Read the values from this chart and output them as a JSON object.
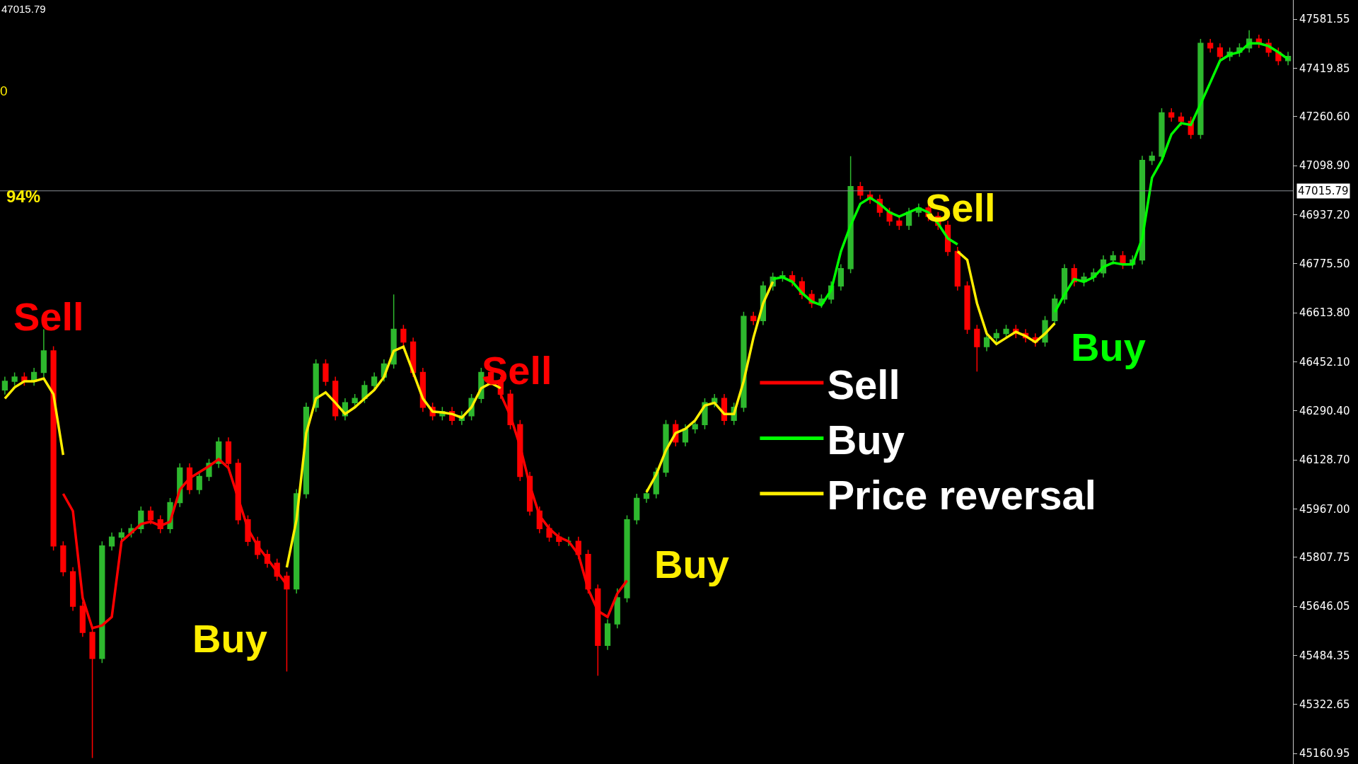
{
  "chart_data": {
    "type": "candlestick",
    "categories": [
      null,
      null,
      null,
      null,
      null,
      null,
      null,
      null,
      null,
      null,
      null,
      null,
      null,
      null,
      null,
      null,
      null,
      null,
      null,
      null,
      null,
      null,
      null,
      null,
      null,
      null,
      null,
      null,
      null,
      null,
      null,
      null,
      null,
      null,
      null,
      null,
      null,
      null,
      null,
      null,
      null,
      null,
      null,
      null,
      null,
      null,
      null,
      null,
      null,
      null,
      null,
      null,
      null,
      null,
      null,
      null,
      null,
      null,
      null,
      null,
      null,
      null,
      null,
      null,
      null,
      null,
      null,
      null,
      null,
      null,
      null,
      null,
      null,
      null,
      null,
      null,
      null,
      null,
      null,
      null,
      null,
      null,
      null,
      null,
      null,
      null,
      null,
      null,
      null,
      null,
      null,
      null,
      null,
      null,
      null,
      null,
      null,
      null,
      null,
      null,
      null,
      null,
      null,
      null,
      null,
      null,
      null,
      null,
      null,
      null,
      null,
      null,
      null,
      null,
      null,
      null,
      null,
      null,
      null,
      null,
      null,
      null,
      null,
      null,
      null,
      null,
      null,
      null,
      null,
      null,
      null,
      null,
      null
    ],
    "ohlc": [
      [
        46359,
        46403,
        46344,
        46388
      ],
      [
        46388,
        46417,
        46373,
        46402
      ],
      [
        46402,
        46417,
        46373,
        46388
      ],
      [
        46388,
        46432,
        46373,
        46417
      ],
      [
        46417,
        46559,
        46402,
        46488
      ],
      [
        46488,
        46503,
        45830,
        45845
      ],
      [
        45845,
        45860,
        45745,
        45760
      ],
      [
        45760,
        45775,
        45631,
        45646
      ],
      [
        45646,
        45661,
        45545,
        45560
      ],
      [
        45560,
        45575,
        45146,
        45474
      ],
      [
        45474,
        45860,
        45459,
        45845
      ],
      [
        45845,
        45889,
        45830,
        45874
      ],
      [
        45874,
        45903,
        45859,
        45888
      ],
      [
        45888,
        45917,
        45873,
        45902
      ],
      [
        45902,
        45975,
        45887,
        45960
      ],
      [
        45960,
        45975,
        45916,
        45931
      ],
      [
        45931,
        45946,
        45887,
        45902
      ],
      [
        45902,
        46003,
        45887,
        45988
      ],
      [
        45988,
        46117,
        45973,
        46102
      ],
      [
        46102,
        46117,
        46016,
        46031
      ],
      [
        46031,
        46089,
        46016,
        46074
      ],
      [
        46074,
        46132,
        46059,
        46117
      ],
      [
        46117,
        46203,
        46102,
        46188
      ],
      [
        46188,
        46203,
        46102,
        46117
      ],
      [
        46117,
        46132,
        45916,
        45931
      ],
      [
        45931,
        45946,
        45845,
        45860
      ],
      [
        45860,
        45875,
        45802,
        45817
      ],
      [
        45817,
        45832,
        45773,
        45788
      ],
      [
        45788,
        45803,
        45730,
        45745
      ],
      [
        45745,
        45760,
        45431,
        45703
      ],
      [
        45703,
        46032,
        45688,
        46017
      ],
      [
        46017,
        46317,
        46002,
        46302
      ],
      [
        46302,
        46460,
        46287,
        46445
      ],
      [
        46445,
        46460,
        46373,
        46388
      ],
      [
        46388,
        46403,
        46259,
        46274
      ],
      [
        46274,
        46332,
        46259,
        46317
      ],
      [
        46317,
        46346,
        46302,
        46331
      ],
      [
        46331,
        46389,
        46316,
        46374
      ],
      [
        46374,
        46417,
        46359,
        46402
      ],
      [
        46402,
        46460,
        46387,
        46445
      ],
      [
        46445,
        46674,
        46430,
        46559
      ],
      [
        46559,
        46574,
        46502,
        46517
      ],
      [
        46517,
        46532,
        46402,
        46417
      ],
      [
        46417,
        46432,
        46287,
        46302
      ],
      [
        46302,
        46317,
        46259,
        46274
      ],
      [
        46274,
        46303,
        46259,
        46288
      ],
      [
        46288,
        46303,
        46244,
        46259
      ],
      [
        46259,
        46289,
        46244,
        46274
      ],
      [
        46274,
        46346,
        46259,
        46331
      ],
      [
        46331,
        46432,
        46316,
        46417
      ],
      [
        46417,
        46432,
        46373,
        46388
      ],
      [
        46388,
        46403,
        46330,
        46345
      ],
      [
        46345,
        46360,
        46230,
        46245
      ],
      [
        46245,
        46260,
        46059,
        46074
      ],
      [
        46074,
        46089,
        45945,
        45960
      ],
      [
        45960,
        45975,
        45887,
        45902
      ],
      [
        45902,
        45917,
        45859,
        45874
      ],
      [
        45874,
        45889,
        45845,
        45860
      ],
      [
        45860,
        45875,
        45845,
        45860
      ],
      [
        45860,
        45875,
        45802,
        45817
      ],
      [
        45817,
        45832,
        45688,
        45703
      ],
      [
        45703,
        45718,
        45417,
        45517
      ],
      [
        45517,
        45603,
        45502,
        45588
      ],
      [
        45588,
        45705,
        45573,
        45674
      ],
      [
        45674,
        45946,
        45659,
        45931
      ],
      [
        45931,
        46017,
        45916,
        46002
      ],
      [
        46002,
        46032,
        45987,
        46017
      ],
      [
        46017,
        46103,
        46002,
        46088
      ],
      [
        46088,
        46260,
        46073,
        46245
      ],
      [
        46245,
        46260,
        46173,
        46188
      ],
      [
        46188,
        46246,
        46173,
        46231
      ],
      [
        46231,
        46260,
        46216,
        46245
      ],
      [
        46245,
        46332,
        46230,
        46317
      ],
      [
        46317,
        46346,
        46302,
        46331
      ],
      [
        46331,
        46346,
        46244,
        46259
      ],
      [
        46259,
        46317,
        46244,
        46302
      ],
      [
        46302,
        46617,
        46287,
        46602
      ],
      [
        46602,
        46617,
        46573,
        46588
      ],
      [
        46588,
        46717,
        46573,
        46702
      ],
      [
        46702,
        46746,
        46687,
        46731
      ],
      [
        46731,
        46751,
        46716,
        46736
      ],
      [
        46736,
        46751,
        46701,
        46716
      ],
      [
        46716,
        46731,
        46659,
        46674
      ],
      [
        46674,
        46689,
        46630,
        46645
      ],
      [
        46645,
        46674,
        46630,
        46659
      ],
      [
        46659,
        46717,
        46644,
        46702
      ],
      [
        46702,
        46774,
        46687,
        46759
      ],
      [
        46759,
        47130,
        46744,
        47030
      ],
      [
        47030,
        47045,
        46987,
        47002
      ],
      [
        47002,
        47017,
        46973,
        46988
      ],
      [
        46988,
        47003,
        46930,
        46945
      ],
      [
        46945,
        46960,
        46901,
        46916
      ],
      [
        46916,
        46931,
        46887,
        46902
      ],
      [
        46902,
        46960,
        46887,
        46945
      ],
      [
        46945,
        46974,
        46930,
        46959
      ],
      [
        46959,
        46974,
        46916,
        46931
      ],
      [
        46931,
        46946,
        46887,
        46902
      ],
      [
        46902,
        46917,
        46801,
        46816
      ],
      [
        46816,
        46831,
        46687,
        46702
      ],
      [
        46702,
        46717,
        46544,
        46559
      ],
      [
        46559,
        46574,
        46420,
        46502
      ],
      [
        46502,
        46546,
        46487,
        46531
      ],
      [
        46531,
        46560,
        46516,
        46545
      ],
      [
        46545,
        46574,
        46530,
        46559
      ],
      [
        46559,
        46574,
        46530,
        46545
      ],
      [
        46545,
        46560,
        46516,
        46531
      ],
      [
        46531,
        46546,
        46502,
        46517
      ],
      [
        46517,
        46603,
        46502,
        46588
      ],
      [
        46588,
        46674,
        46573,
        46659
      ],
      [
        46659,
        46774,
        46644,
        46759
      ],
      [
        46759,
        46774,
        46701,
        46716
      ],
      [
        46716,
        46746,
        46701,
        46731
      ],
      [
        46731,
        46760,
        46716,
        46745
      ],
      [
        46745,
        46803,
        46730,
        46788
      ],
      [
        46788,
        46817,
        46773,
        46802
      ],
      [
        46802,
        46817,
        46758,
        46773
      ],
      [
        46773,
        46803,
        46758,
        46788
      ],
      [
        46788,
        47131,
        46773,
        47116
      ],
      [
        47116,
        47145,
        47101,
        47130
      ],
      [
        47130,
        47288,
        47115,
        47273
      ],
      [
        47273,
        47288,
        47244,
        47259
      ],
      [
        47259,
        47274,
        47230,
        47245
      ],
      [
        47245,
        47260,
        47187,
        47202
      ],
      [
        47202,
        47517,
        47187,
        47502
      ],
      [
        47502,
        47517,
        47472,
        47487
      ],
      [
        47487,
        47502,
        47444,
        47459
      ],
      [
        47459,
        47488,
        47444,
        47473
      ],
      [
        47473,
        47502,
        47458,
        47487
      ],
      [
        47487,
        47545,
        47472,
        47516
      ],
      [
        47516,
        47531,
        47487,
        47502
      ],
      [
        47502,
        47517,
        47458,
        47473
      ],
      [
        47473,
        47488,
        47430,
        47445
      ],
      [
        47445,
        47474,
        47430,
        47459
      ]
    ],
    "colors": [
      "#2eb82e",
      "#2eb82e",
      "#ff0000",
      "#2eb82e",
      "#2eb82e",
      "#ff0000",
      "#ff0000",
      "#ff0000",
      "#ff0000",
      "#ff0000",
      "#2eb82e",
      "#2eb82e",
      "#2eb82e",
      "#2eb82e",
      "#2eb82e",
      "#ff0000",
      "#ff0000",
      "#2eb82e",
      "#2eb82e",
      "#ff0000",
      "#2eb82e",
      "#2eb82e",
      "#2eb82e",
      "#ff0000",
      "#ff0000",
      "#ff0000",
      "#ff0000",
      "#ff0000",
      "#ff0000",
      "#ff0000",
      "#2eb82e",
      "#2eb82e",
      "#2eb82e",
      "#ff0000",
      "#ff0000",
      "#2eb82e",
      "#2eb82e",
      "#2eb82e",
      "#2eb82e",
      "#2eb82e",
      "#2eb82e",
      "#ff0000",
      "#ff0000",
      "#ff0000",
      "#ff0000",
      "#2eb82e",
      "#ff0000",
      "#2eb82e",
      "#2eb82e",
      "#2eb82e",
      "#ff0000",
      "#ff0000",
      "#ff0000",
      "#ff0000",
      "#ff0000",
      "#ff0000",
      "#ff0000",
      "#ff0000",
      "#2eb82e",
      "#ff0000",
      "#ff0000",
      "#ff0000",
      "#2eb82e",
      "#2eb82e",
      "#2eb82e",
      "#2eb82e",
      "#2eb82e",
      "#2eb82e",
      "#2eb82e",
      "#ff0000",
      "#2eb82e",
      "#2eb82e",
      "#2eb82e",
      "#2eb82e",
      "#ff0000",
      "#2eb82e",
      "#2eb82e",
      "#ff0000",
      "#2eb82e",
      "#2eb82e",
      "#2eb82e",
      "#ff0000",
      "#ff0000",
      "#ff0000",
      "#2eb82e",
      "#2eb82e",
      "#2eb82e",
      "#2eb82e",
      "#ff0000",
      "#ff0000",
      "#ff0000",
      "#ff0000",
      "#ff0000",
      "#2eb82e",
      "#2eb82e",
      "#ff0000",
      "#ff0000",
      "#ff0000",
      "#ff0000",
      "#ff0000",
      "#ff0000",
      "#2eb82e",
      "#2eb82e",
      "#2eb82e",
      "#ff0000",
      "#ff0000",
      "#ff0000",
      "#2eb82e",
      "#2eb82e",
      "#2eb82e",
      "#ff0000",
      "#2eb82e",
      "#2eb82e",
      "#2eb82e",
      "#2eb82e",
      "#ff0000",
      "#2eb82e",
      "#2eb82e",
      "#2eb82e",
      "#2eb82e",
      "#ff0000",
      "#ff0000",
      "#ff0000",
      "#2eb82e",
      "#ff0000",
      "#ff0000",
      "#2eb82e",
      "#2eb82e",
      "#2eb82e",
      "#ff0000",
      "#ff0000",
      "#ff0000",
      "#2eb82e"
    ],
    "series": [
      {
        "name": "Sell",
        "type": "line",
        "color": "#ff0000",
        "values": [
          null,
          null,
          null,
          null,
          null,
          null,
          46017,
          45960,
          45674,
          45574,
          45583,
          45611,
          45860,
          45888,
          45917,
          45925,
          45911,
          45925,
          46031,
          46068,
          46088,
          46108,
          46131,
          46102,
          46002,
          45902,
          45845,
          45803,
          45760,
          45717,
          null,
          null,
          null,
          null,
          null,
          null,
          null,
          null,
          null,
          null,
          null,
          null,
          null,
          null,
          null,
          null,
          null,
          null,
          null,
          null,
          null,
          46345,
          46274,
          46174,
          46045,
          45945,
          45902,
          45874,
          45860,
          45817,
          45703,
          45631,
          45611,
          45688,
          45731,
          null,
          null,
          null,
          null,
          null,
          null,
          null,
          null,
          null,
          null,
          null,
          null,
          null,
          null,
          null,
          null,
          null,
          null,
          null,
          null,
          null,
          null,
          null,
          null,
          null,
          null,
          null,
          null,
          null,
          null,
          null,
          null,
          null,
          null,
          null,
          null,
          null,
          null,
          null,
          null,
          null,
          null,
          null,
          null,
          null,
          null,
          null,
          null,
          null,
          null,
          null,
          null,
          null,
          null,
          null,
          null,
          null,
          null,
          null,
          null,
          null,
          null,
          null,
          null,
          null,
          null,
          null,
          null
        ]
      },
      {
        "name": "Buy",
        "type": "line",
        "color": "#00ff00",
        "values": [
          null,
          null,
          null,
          null,
          null,
          null,
          null,
          null,
          null,
          null,
          null,
          null,
          null,
          null,
          null,
          null,
          null,
          null,
          null,
          null,
          null,
          null,
          null,
          null,
          null,
          null,
          null,
          null,
          null,
          null,
          null,
          null,
          null,
          null,
          null,
          null,
          null,
          null,
          null,
          null,
          null,
          null,
          null,
          null,
          null,
          null,
          null,
          null,
          null,
          null,
          null,
          null,
          null,
          null,
          null,
          null,
          null,
          null,
          null,
          null,
          null,
          null,
          null,
          null,
          null,
          null,
          null,
          null,
          null,
          null,
          null,
          null,
          null,
          null,
          null,
          null,
          null,
          null,
          null,
          46725,
          46731,
          46716,
          46679,
          46651,
          46639,
          46688,
          46816,
          46902,
          46973,
          46993,
          46973,
          46945,
          46931,
          46945,
          46959,
          46945,
          46908,
          46859,
          46839,
          null,
          null,
          null,
          null,
          null,
          null,
          null,
          null,
          null,
          46616,
          46674,
          46725,
          46716,
          46731,
          46765,
          46779,
          46773,
          46773,
          46859,
          47059,
          47116,
          47202,
          47239,
          47233,
          47302,
          47373,
          47445,
          47465,
          47473,
          47502,
          47502,
          47493,
          47473,
          47450
        ]
      },
      {
        "name": "Price reversal",
        "type": "line",
        "color": "#ffee00",
        "values": [
          46331,
          46368,
          46388,
          46388,
          46397,
          46345,
          46145,
          null,
          null,
          null,
          null,
          null,
          null,
          null,
          null,
          null,
          null,
          null,
          null,
          null,
          null,
          null,
          null,
          null,
          null,
          null,
          null,
          null,
          null,
          45774,
          45931,
          46217,
          46331,
          46351,
          46317,
          46280,
          46302,
          46331,
          46359,
          46402,
          46488,
          46502,
          46417,
          46331,
          46288,
          46285,
          46280,
          46268,
          46302,
          46365,
          46382,
          46365,
          null,
          null,
          null,
          null,
          null,
          null,
          null,
          null,
          null,
          null,
          null,
          null,
          null,
          null,
          46022,
          46080,
          46160,
          46217,
          46231,
          46259,
          46308,
          46317,
          46280,
          46280,
          46388,
          46531,
          46645,
          46716,
          null,
          null,
          null,
          null,
          null,
          null,
          null,
          null,
          null,
          null,
          null,
          null,
          null,
          null,
          null,
          null,
          null,
          null,
          46816,
          46788,
          46645,
          46545,
          46511,
          46531,
          46551,
          46537,
          46517,
          46545,
          46579,
          null,
          null,
          null,
          null,
          null,
          null,
          null,
          null,
          null,
          null,
          null,
          null,
          null,
          null,
          null,
          null,
          null,
          null,
          null,
          null,
          null,
          null,
          null,
          null
        ]
      }
    ],
    "ylim": [
      45126,
      47645
    ],
    "yticks": [
      47581.55,
      47419.85,
      {
        "value": 47260.6,
        "label": "47260.60"
      },
      {
        "value": 47098.9,
        "label": "47098.90"
      },
      {
        "value": 46937.2,
        "label": "46937.20"
      },
      {
        "value": 46775.5,
        "label": "46775.50"
      },
      {
        "value": 46613.8,
        "label": "46613.80"
      },
      {
        "value": 46452.1,
        "label": "46452.10"
      },
      {
        "value": 46290.4,
        "label": "46290.40"
      },
      {
        "value": 46128.7,
        "label": "46128.70"
      },
      {
        "value": 45967,
        "label": "45967.00"
      },
      45807.75,
      45646.05,
      45484.35,
      45322.65,
      45160.95
    ],
    "tick_labels": "y",
    "ref_lines": [
      {
        "axis": "y",
        "value": 47015.79,
        "label": "47015.79",
        "color": "#8a9096"
      }
    ],
    "annotations": [
      "Sell",
      "Buy",
      "Sell",
      "Buy",
      "Sell",
      "Buy",
      "47015.79",
      "0",
      "94%"
    ],
    "legend": "right"
  }
}
